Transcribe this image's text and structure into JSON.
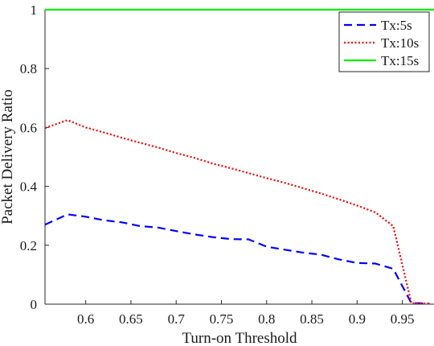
{
  "chart_data": {
    "type": "line",
    "xlabel": "Turn-on Threshold",
    "ylabel": "Packet Delivery Ratio",
    "xlim": [
      0.555,
      0.985
    ],
    "ylim": [
      0,
      1
    ],
    "xticks": [
      0.6,
      0.65,
      0.7,
      0.75,
      0.8,
      0.85,
      0.9,
      0.95
    ],
    "xtick_labels": [
      "0.6",
      "0.65",
      "0.7",
      "0.75",
      "0.8",
      "0.85",
      "0.9",
      "0.95"
    ],
    "yticks": [
      0,
      0.2,
      0.4,
      0.6,
      0.8,
      1
    ],
    "ytick_labels": [
      "0",
      "0.2",
      "0.4",
      "0.6",
      "0.8",
      "1"
    ],
    "grid": false,
    "legend_position": "top-right",
    "series": [
      {
        "name": "Tx:5s",
        "color": "#0000ff",
        "style": "dashed",
        "x": [
          0.555,
          0.58,
          0.6,
          0.62,
          0.64,
          0.66,
          0.68,
          0.7,
          0.72,
          0.74,
          0.76,
          0.78,
          0.8,
          0.82,
          0.84,
          0.86,
          0.88,
          0.9,
          0.92,
          0.94,
          0.96,
          0.97,
          0.98
        ],
        "y": [
          0.27,
          0.305,
          0.297,
          0.285,
          0.278,
          0.265,
          0.26,
          0.248,
          0.237,
          0.228,
          0.221,
          0.22,
          0.195,
          0.185,
          0.175,
          0.168,
          0.152,
          0.14,
          0.138,
          0.12,
          0.003,
          0.003,
          0.002
        ]
      },
      {
        "name": "Tx:10s",
        "color": "#ff0000",
        "style": "dotted",
        "x": [
          0.555,
          0.58,
          0.6,
          0.62,
          0.64,
          0.66,
          0.68,
          0.7,
          0.72,
          0.74,
          0.76,
          0.78,
          0.8,
          0.82,
          0.84,
          0.86,
          0.88,
          0.9,
          0.92,
          0.94,
          0.96,
          0.97,
          0.98
        ],
        "y": [
          0.598,
          0.625,
          0.6,
          0.583,
          0.565,
          0.548,
          0.532,
          0.513,
          0.497,
          0.478,
          0.462,
          0.445,
          0.428,
          0.412,
          0.394,
          0.376,
          0.356,
          0.335,
          0.312,
          0.265,
          0.003,
          0.003,
          0.002
        ]
      },
      {
        "name": "Tx:15s",
        "color": "#00ee00",
        "style": "solid",
        "x": [
          0.555,
          0.985
        ],
        "y": [
          1,
          1
        ]
      }
    ]
  }
}
